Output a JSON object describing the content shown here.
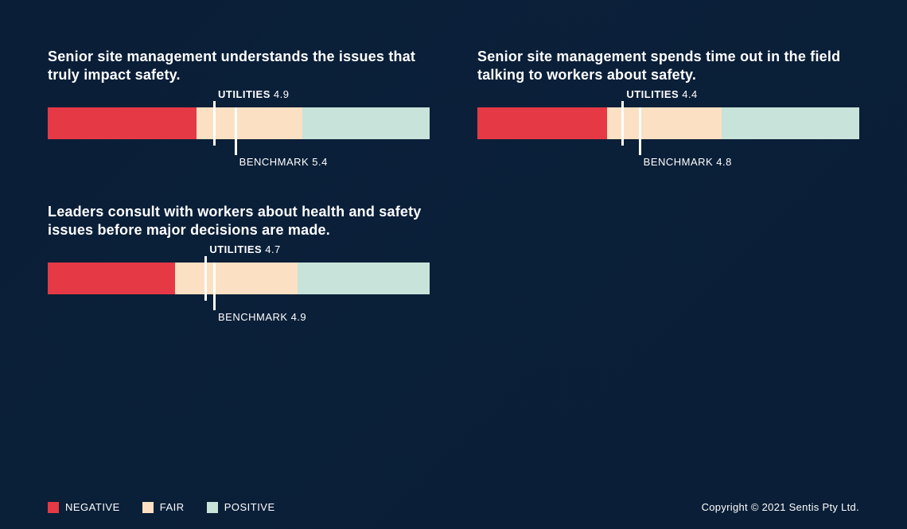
{
  "colors": {
    "negative": "#e53945",
    "fair": "#fbe0c3",
    "positive": "#c8e3da",
    "background": "#0a1e37",
    "text": "#ffffff",
    "marker": "#ffffff"
  },
  "scale": {
    "min": 1,
    "max": 10,
    "neg_end": 4.5,
    "fair_end": 7
  },
  "charts": [
    {
      "title": "Senior site management understands the issues that truly impact safety.",
      "utilities_label": "UTILITIES",
      "utilities_value": 4.9,
      "benchmark_label": "BENCHMARK",
      "benchmark_value": 5.4,
      "segments": {
        "negative_pct": 38.9,
        "fair_pct": 27.8,
        "positive_pct": 33.3
      }
    },
    {
      "title": "Senior site management spends time out in the field talking to workers about safety.",
      "utilities_label": "UTILITIES",
      "utilities_value": 4.4,
      "benchmark_label": "BENCHMARK",
      "benchmark_value": 4.8,
      "segments": {
        "negative_pct": 34.0,
        "fair_pct": 30.0,
        "positive_pct": 36.0
      }
    },
    {
      "title": "Leaders consult with workers about health and safety issues before major decisions are made.",
      "utilities_label": "UTILITIES",
      "utilities_value": 4.7,
      "benchmark_label": "BENCHMARK",
      "benchmark_value": 4.9,
      "segments": {
        "negative_pct": 33.3,
        "fair_pct": 32.2,
        "positive_pct": 34.5
      }
    }
  ],
  "legend": {
    "negative": "NEGATIVE",
    "fair": "FAIR",
    "positive": "POSITIVE"
  },
  "copyright": "Copyright  © 2021 Sentis Pty Ltd."
}
